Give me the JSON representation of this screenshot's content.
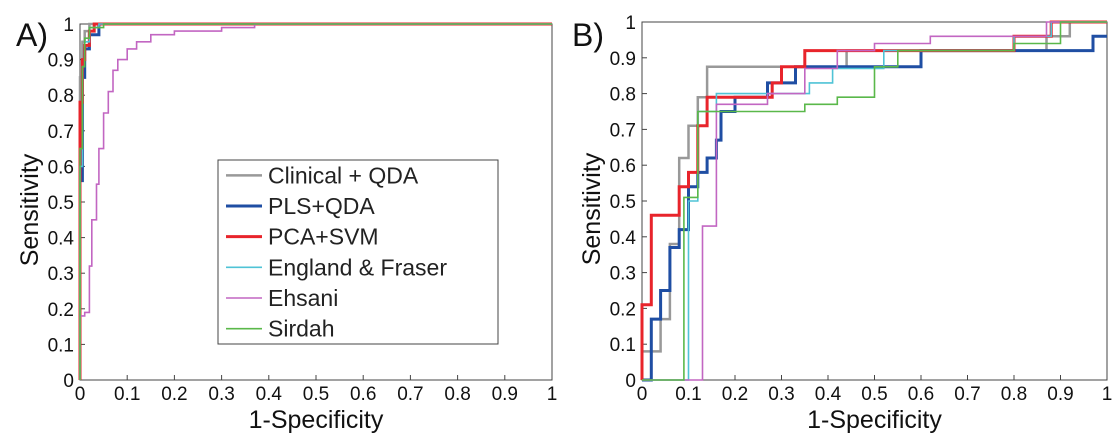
{
  "chart_data": [
    {
      "panel": "A)",
      "type": "line",
      "xlabel": "1-Specificity",
      "ylabel": "Sensitivity",
      "xlim": [
        0,
        1
      ],
      "ylim": [
        0,
        1
      ],
      "xticks": [
        "0",
        "0.1",
        "0.2",
        "0.3",
        "0.4",
        "0.5",
        "0.6",
        "0.7",
        "0.8",
        "0.9",
        "1"
      ],
      "yticks": [
        "0",
        "0.1",
        "0.2",
        "0.3",
        "0.4",
        "0.5",
        "0.6",
        "0.7",
        "0.8",
        "0.9",
        "1"
      ],
      "grid": false,
      "legend_position": "center-right",
      "series": [
        {
          "name": "Clinical + QDA",
          "color": "#999999",
          "width": 2.5,
          "points": [
            [
              0,
              0
            ],
            [
              0,
              0.85
            ],
            [
              0.005,
              0.85
            ],
            [
              0.005,
              0.95
            ],
            [
              0.01,
              0.95
            ],
            [
              0.01,
              0.98
            ],
            [
              0.02,
              0.98
            ],
            [
              0.02,
              1
            ],
            [
              1,
              1
            ]
          ]
        },
        {
          "name": "PLS+QDA",
          "color": "#1f4ea3",
          "width": 3,
          "points": [
            [
              0,
              0
            ],
            [
              0,
              0.56
            ],
            [
              0.005,
              0.56
            ],
            [
              0.005,
              0.85
            ],
            [
              0.01,
              0.85
            ],
            [
              0.01,
              0.93
            ],
            [
              0.02,
              0.93
            ],
            [
              0.02,
              0.97
            ],
            [
              0.04,
              0.97
            ],
            [
              0.04,
              1
            ],
            [
              1,
              1
            ]
          ]
        },
        {
          "name": "PCA+SVM",
          "color": "#e8242b",
          "width": 3,
          "points": [
            [
              0,
              0
            ],
            [
              0,
              0.78
            ],
            [
              0.005,
              0.78
            ],
            [
              0.005,
              0.9
            ],
            [
              0.01,
              0.9
            ],
            [
              0.01,
              0.94
            ],
            [
              0.02,
              0.94
            ],
            [
              0.02,
              0.98
            ],
            [
              0.03,
              0.98
            ],
            [
              0.03,
              1
            ],
            [
              1,
              1
            ]
          ]
        },
        {
          "name": "England & Fraser",
          "color": "#4fc3d6",
          "width": 1.6,
          "points": [
            [
              0,
              0
            ],
            [
              0,
              0.6
            ],
            [
              0.005,
              0.6
            ],
            [
              0.005,
              0.88
            ],
            [
              0.01,
              0.88
            ],
            [
              0.01,
              0.95
            ],
            [
              0.02,
              0.95
            ],
            [
              0.02,
              0.99
            ],
            [
              0.04,
              0.99
            ],
            [
              0.04,
              1
            ],
            [
              1,
              1
            ]
          ]
        },
        {
          "name": "Ehsani",
          "color": "#c266c2",
          "width": 1.6,
          "points": [
            [
              0,
              0
            ],
            [
              0,
              0.18
            ],
            [
              0.01,
              0.18
            ],
            [
              0.01,
              0.19
            ],
            [
              0.02,
              0.19
            ],
            [
              0.02,
              0.32
            ],
            [
              0.025,
              0.32
            ],
            [
              0.025,
              0.45
            ],
            [
              0.035,
              0.45
            ],
            [
              0.035,
              0.55
            ],
            [
              0.04,
              0.55
            ],
            [
              0.04,
              0.65
            ],
            [
              0.05,
              0.65
            ],
            [
              0.05,
              0.75
            ],
            [
              0.06,
              0.75
            ],
            [
              0.06,
              0.81
            ],
            [
              0.07,
              0.81
            ],
            [
              0.07,
              0.87
            ],
            [
              0.08,
              0.87
            ],
            [
              0.08,
              0.9
            ],
            [
              0.1,
              0.9
            ],
            [
              0.1,
              0.93
            ],
            [
              0.12,
              0.93
            ],
            [
              0.12,
              0.95
            ],
            [
              0.15,
              0.95
            ],
            [
              0.15,
              0.97
            ],
            [
              0.2,
              0.97
            ],
            [
              0.2,
              0.98
            ],
            [
              0.3,
              0.98
            ],
            [
              0.3,
              0.99
            ],
            [
              0.37,
              0.99
            ],
            [
              0.37,
              1
            ],
            [
              1,
              1
            ]
          ]
        },
        {
          "name": "Sirdah",
          "color": "#5ab84a",
          "width": 1.6,
          "points": [
            [
              0,
              0
            ],
            [
              0,
              0.65
            ],
            [
              0.005,
              0.65
            ],
            [
              0.005,
              0.88
            ],
            [
              0.01,
              0.88
            ],
            [
              0.01,
              0.96
            ],
            [
              0.02,
              0.96
            ],
            [
              0.02,
              0.99
            ],
            [
              0.05,
              0.99
            ],
            [
              0.05,
              1
            ],
            [
              1,
              1
            ]
          ]
        }
      ]
    },
    {
      "panel": "B)",
      "type": "line",
      "xlabel": "1-Specificity",
      "ylabel": "Sensitivity",
      "xlim": [
        0,
        1
      ],
      "ylim": [
        0,
        1
      ],
      "xticks": [
        "0",
        "0.1",
        "0.2",
        "0.3",
        "0.4",
        "0.5",
        "0.6",
        "0.7",
        "0.8",
        "0.9",
        "1"
      ],
      "yticks": [
        "0",
        "0.1",
        "0.2",
        "0.3",
        "0.4",
        "0.5",
        "0.6",
        "0.7",
        "0.8",
        "0.9",
        "1"
      ],
      "grid": false,
      "series": [
        {
          "name": "Clinical + QDA",
          "color": "#999999",
          "width": 2.5,
          "points": [
            [
              0,
              0
            ],
            [
              0,
              0.08
            ],
            [
              0.04,
              0.08
            ],
            [
              0.04,
              0.17
            ],
            [
              0.06,
              0.17
            ],
            [
              0.06,
              0.38
            ],
            [
              0.08,
              0.38
            ],
            [
              0.08,
              0.62
            ],
            [
              0.1,
              0.62
            ],
            [
              0.1,
              0.71
            ],
            [
              0.12,
              0.71
            ],
            [
              0.12,
              0.79
            ],
            [
              0.14,
              0.79
            ],
            [
              0.14,
              0.875
            ],
            [
              0.44,
              0.875
            ],
            [
              0.44,
              0.92
            ],
            [
              0.87,
              0.92
            ],
            [
              0.87,
              0.96
            ],
            [
              0.92,
              0.96
            ],
            [
              0.92,
              1
            ],
            [
              1,
              1
            ]
          ]
        },
        {
          "name": "PLS+QDA",
          "color": "#1f4ea3",
          "width": 3,
          "points": [
            [
              0,
              0
            ],
            [
              0.02,
              0
            ],
            [
              0.02,
              0.17
            ],
            [
              0.04,
              0.17
            ],
            [
              0.04,
              0.25
            ],
            [
              0.06,
              0.25
            ],
            [
              0.06,
              0.37
            ],
            [
              0.08,
              0.37
            ],
            [
              0.08,
              0.42
            ],
            [
              0.1,
              0.42
            ],
            [
              0.1,
              0.54
            ],
            [
              0.12,
              0.54
            ],
            [
              0.12,
              0.58
            ],
            [
              0.14,
              0.58
            ],
            [
              0.14,
              0.62
            ],
            [
              0.16,
              0.62
            ],
            [
              0.16,
              0.67
            ],
            [
              0.17,
              0.67
            ],
            [
              0.17,
              0.75
            ],
            [
              0.2,
              0.75
            ],
            [
              0.2,
              0.79
            ],
            [
              0.27,
              0.79
            ],
            [
              0.27,
              0.83
            ],
            [
              0.33,
              0.83
            ],
            [
              0.33,
              0.875
            ],
            [
              0.6,
              0.875
            ],
            [
              0.6,
              0.92
            ],
            [
              0.97,
              0.92
            ],
            [
              0.97,
              0.96
            ],
            [
              1,
              0.96
            ]
          ]
        },
        {
          "name": "PCA+SVM",
          "color": "#e8242b",
          "width": 3,
          "points": [
            [
              0,
              0
            ],
            [
              0,
              0.21
            ],
            [
              0.02,
              0.21
            ],
            [
              0.02,
              0.46
            ],
            [
              0.08,
              0.46
            ],
            [
              0.08,
              0.54
            ],
            [
              0.1,
              0.54
            ],
            [
              0.1,
              0.58
            ],
            [
              0.12,
              0.58
            ],
            [
              0.12,
              0.71
            ],
            [
              0.14,
              0.71
            ],
            [
              0.14,
              0.79
            ],
            [
              0.28,
              0.79
            ],
            [
              0.28,
              0.83
            ],
            [
              0.3,
              0.83
            ],
            [
              0.3,
              0.875
            ],
            [
              0.35,
              0.875
            ],
            [
              0.35,
              0.92
            ],
            [
              0.8,
              0.92
            ],
            [
              0.8,
              0.96
            ],
            [
              0.88,
              0.96
            ],
            [
              0.88,
              1
            ],
            [
              1,
              1
            ]
          ]
        },
        {
          "name": "England & Fraser",
          "color": "#4fc3d6",
          "width": 1.6,
          "points": [
            [
              0,
              0
            ],
            [
              0.1,
              0
            ],
            [
              0.1,
              0.5
            ],
            [
              0.12,
              0.5
            ],
            [
              0.12,
              0.75
            ],
            [
              0.16,
              0.75
            ],
            [
              0.16,
              0.8
            ],
            [
              0.36,
              0.8
            ],
            [
              0.36,
              0.83
            ],
            [
              0.41,
              0.83
            ],
            [
              0.41,
              0.87
            ],
            [
              0.52,
              0.87
            ],
            [
              0.52,
              0.92
            ],
            [
              0.8,
              0.92
            ],
            [
              0.8,
              0.96
            ],
            [
              0.88,
              0.96
            ],
            [
              0.88,
              1
            ],
            [
              1,
              1
            ]
          ]
        },
        {
          "name": "Ehsani",
          "color": "#c266c2",
          "width": 1.6,
          "points": [
            [
              0,
              0
            ],
            [
              0.13,
              0
            ],
            [
              0.13,
              0.43
            ],
            [
              0.16,
              0.43
            ],
            [
              0.16,
              0.77
            ],
            [
              0.27,
              0.77
            ],
            [
              0.27,
              0.8
            ],
            [
              0.35,
              0.8
            ],
            [
              0.35,
              0.87
            ],
            [
              0.42,
              0.87
            ],
            [
              0.42,
              0.92
            ],
            [
              0.5,
              0.92
            ],
            [
              0.5,
              0.94
            ],
            [
              0.62,
              0.94
            ],
            [
              0.62,
              0.96
            ],
            [
              0.87,
              0.96
            ],
            [
              0.87,
              1
            ],
            [
              1,
              1
            ]
          ]
        },
        {
          "name": "Sirdah",
          "color": "#5ab84a",
          "width": 1.6,
          "points": [
            [
              0,
              0
            ],
            [
              0.09,
              0
            ],
            [
              0.09,
              0.51
            ],
            [
              0.12,
              0.51
            ],
            [
              0.12,
              0.75
            ],
            [
              0.35,
              0.75
            ],
            [
              0.35,
              0.77
            ],
            [
              0.42,
              0.77
            ],
            [
              0.42,
              0.79
            ],
            [
              0.5,
              0.79
            ],
            [
              0.5,
              0.875
            ],
            [
              0.55,
              0.875
            ],
            [
              0.55,
              0.92
            ],
            [
              0.8,
              0.92
            ],
            [
              0.8,
              0.94
            ],
            [
              0.9,
              0.94
            ],
            [
              0.9,
              1
            ],
            [
              1,
              1
            ]
          ]
        }
      ]
    }
  ]
}
